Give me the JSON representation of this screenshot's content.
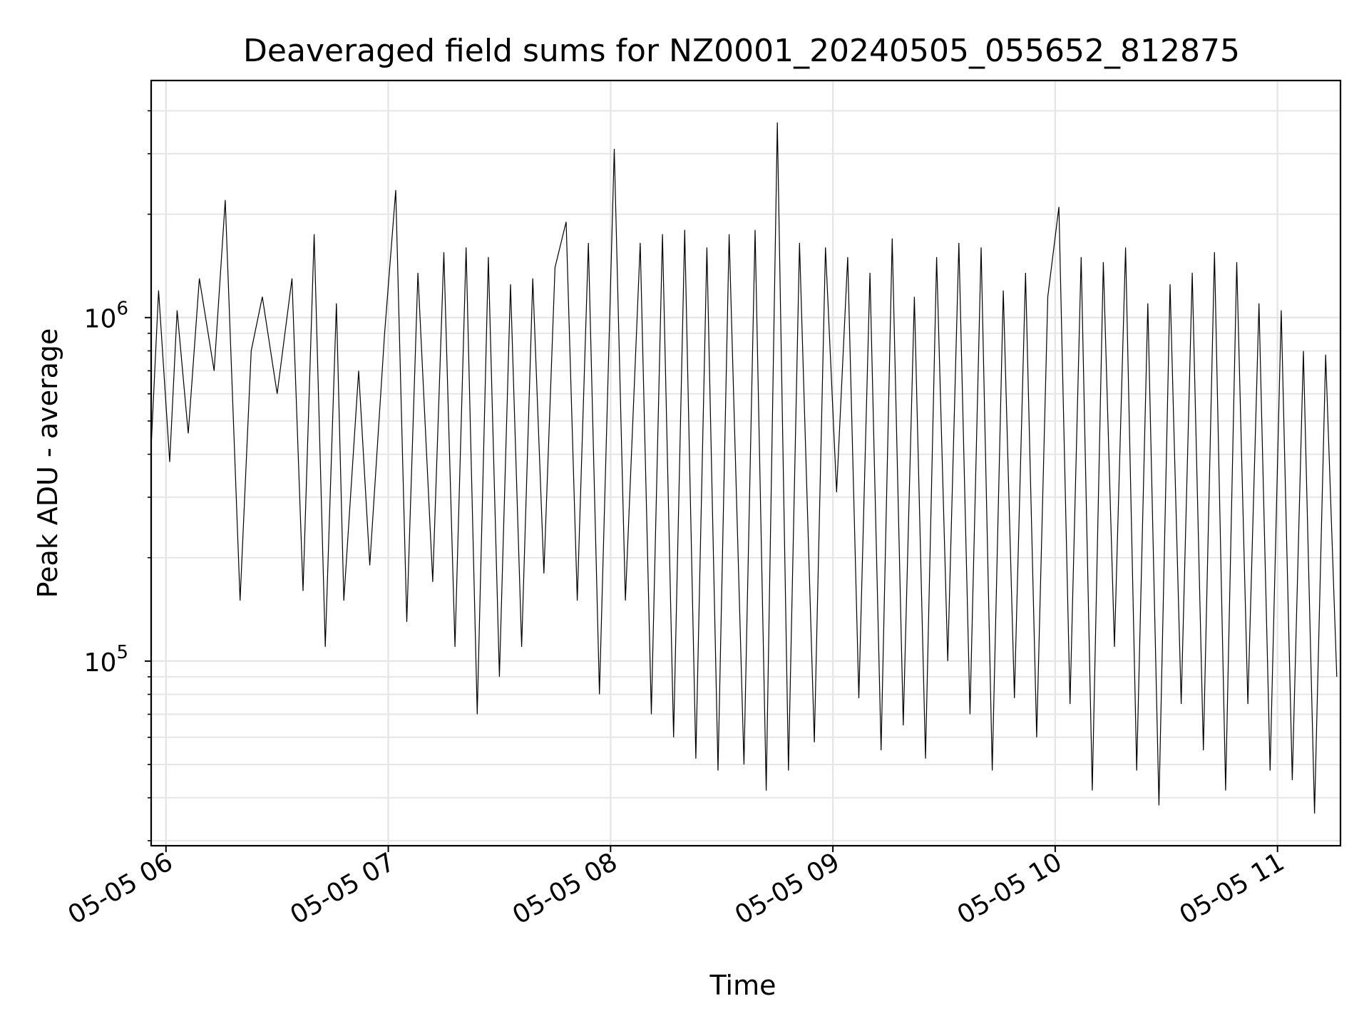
{
  "chart_data": {
    "type": "line",
    "title": "Deaveraged field sums for NZ0001_20240505_055652_812875",
    "xlabel": "Time",
    "ylabel": "Peak ADU - average",
    "y_scale": "log",
    "grid": true,
    "legend": "none",
    "xlim": [
      "2024-05-05 05:56:00",
      "2024-05-05 11:17:00"
    ],
    "ylim": [
      29000,
      4900000
    ],
    "x_ticks": [
      "05-05 06",
      "05-05 07",
      "05-05 08",
      "05-05 09",
      "05-05 10",
      "05-05 11"
    ],
    "x_tick_times": [
      "2024-05-05 06:00:00",
      "2024-05-05 07:00:00",
      "2024-05-05 08:00:00",
      "2024-05-05 09:00:00",
      "2024-05-05 10:00:00",
      "2024-05-05 11:00:00"
    ],
    "y_ticks": [
      {
        "base": "10",
        "exp": "5",
        "value": 100000
      },
      {
        "base": "10",
        "exp": "6",
        "value": 1000000
      }
    ],
    "line_color": "#000000",
    "series": [
      {
        "x": [
          "2024-05-05 05:56:00",
          "2024-05-05 05:58:00",
          "2024-05-05 06:01:00",
          "2024-05-05 06:03:00",
          "2024-05-05 06:06:00",
          "2024-05-05 06:09:00",
          "2024-05-05 06:13:00",
          "2024-05-05 06:16:00",
          "2024-05-05 06:20:00",
          "2024-05-05 06:23:00",
          "2024-05-05 06:26:00",
          "2024-05-05 06:30:00",
          "2024-05-05 06:34:00",
          "2024-05-05 06:37:00",
          "2024-05-05 06:40:00",
          "2024-05-05 06:43:00",
          "2024-05-05 06:46:00",
          "2024-05-05 06:48:00",
          "2024-05-05 06:52:00",
          "2024-05-05 06:55:00",
          "2024-05-05 06:59:00",
          "2024-05-05 07:02:00",
          "2024-05-05 07:05:00",
          "2024-05-05 07:08:00",
          "2024-05-05 07:12:00",
          "2024-05-05 07:15:00",
          "2024-05-05 07:18:00",
          "2024-05-05 07:21:00",
          "2024-05-05 07:24:00",
          "2024-05-05 07:27:00",
          "2024-05-05 07:30:00",
          "2024-05-05 07:33:00",
          "2024-05-05 07:36:00",
          "2024-05-05 07:39:00",
          "2024-05-05 07:42:00",
          "2024-05-05 07:45:00",
          "2024-05-05 07:48:00",
          "2024-05-05 07:51:00",
          "2024-05-05 07:54:00",
          "2024-05-05 07:57:00",
          "2024-05-05 08:01:00",
          "2024-05-05 08:04:00",
          "2024-05-05 08:08:00",
          "2024-05-05 08:11:00",
          "2024-05-05 08:14:00",
          "2024-05-05 08:17:00",
          "2024-05-05 08:20:00",
          "2024-05-05 08:23:00",
          "2024-05-05 08:26:00",
          "2024-05-05 08:29:00",
          "2024-05-05 08:32:00",
          "2024-05-05 08:36:00",
          "2024-05-05 08:39:00",
          "2024-05-05 08:42:00",
          "2024-05-05 08:45:00",
          "2024-05-05 08:48:00",
          "2024-05-05 08:51:00",
          "2024-05-05 08:55:00",
          "2024-05-05 08:58:00",
          "2024-05-05 09:01:00",
          "2024-05-05 09:04:00",
          "2024-05-05 09:07:00",
          "2024-05-05 09:10:00",
          "2024-05-05 09:13:00",
          "2024-05-05 09:16:00",
          "2024-05-05 09:19:00",
          "2024-05-05 09:22:00",
          "2024-05-05 09:25:00",
          "2024-05-05 09:28:00",
          "2024-05-05 09:31:00",
          "2024-05-05 09:34:00",
          "2024-05-05 09:37:00",
          "2024-05-05 09:40:00",
          "2024-05-05 09:43:00",
          "2024-05-05 09:46:00",
          "2024-05-05 09:49:00",
          "2024-05-05 09:52:00",
          "2024-05-05 09:55:00",
          "2024-05-05 09:58:00",
          "2024-05-05 10:01:00",
          "2024-05-05 10:04:00",
          "2024-05-05 10:07:00",
          "2024-05-05 10:10:00",
          "2024-05-05 10:13:00",
          "2024-05-05 10:16:00",
          "2024-05-05 10:19:00",
          "2024-05-05 10:22:00",
          "2024-05-05 10:25:00",
          "2024-05-05 10:28:00",
          "2024-05-05 10:31:00",
          "2024-05-05 10:34:00",
          "2024-05-05 10:37:00",
          "2024-05-05 10:40:00",
          "2024-05-05 10:43:00",
          "2024-05-05 10:46:00",
          "2024-05-05 10:49:00",
          "2024-05-05 10:52:00",
          "2024-05-05 10:55:00",
          "2024-05-05 10:58:00",
          "2024-05-05 11:01:00",
          "2024-05-05 11:04:00",
          "2024-05-05 11:07:00",
          "2024-05-05 11:10:00",
          "2024-05-05 11:13:00",
          "2024-05-05 11:16:00"
        ],
        "values": [
          420000,
          1200000,
          380000,
          1050000,
          460000,
          1300000,
          700000,
          2200000,
          150000,
          800000,
          1150000,
          600000,
          1300000,
          160000,
          1750000,
          110000,
          1100000,
          150000,
          700000,
          190000,
          900000,
          2350000,
          130000,
          1350000,
          170000,
          1550000,
          110000,
          1600000,
          70000,
          1500000,
          90000,
          1250000,
          110000,
          1300000,
          180000,
          1400000,
          1900000,
          150000,
          1650000,
          80000,
          3100000,
          150000,
          1650000,
          70000,
          1750000,
          60000,
          1800000,
          52000,
          1600000,
          48000,
          1750000,
          50000,
          1800000,
          42000,
          3700000,
          48000,
          1650000,
          58000,
          1600000,
          310000,
          1500000,
          78000,
          1350000,
          55000,
          1700000,
          65000,
          1150000,
          52000,
          1500000,
          100000,
          1650000,
          70000,
          1600000,
          48000,
          1200000,
          78000,
          1350000,
          60000,
          1150000,
          2100000,
          75000,
          1500000,
          42000,
          1450000,
          110000,
          1600000,
          48000,
          1100000,
          38000,
          1250000,
          75000,
          1350000,
          55000,
          1550000,
          42000,
          1450000,
          75000,
          1100000,
          48000,
          1050000,
          45000,
          800000,
          36000,
          780000,
          90000
        ]
      }
    ]
  }
}
